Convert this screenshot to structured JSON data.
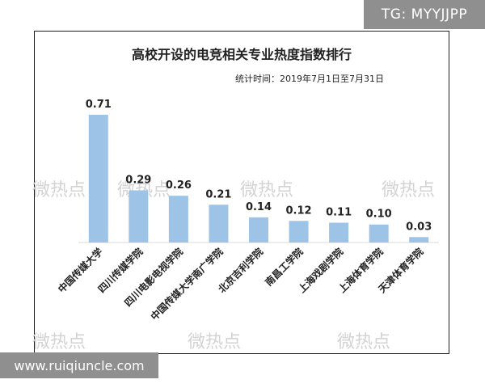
{
  "watermarks": {
    "top": "TG: MYYJJPP",
    "bottom": "www.ruiqiuncle.com",
    "weibo": "微热点"
  },
  "chart_data": {
    "type": "bar",
    "title": "高校开设的电竞相关专业热度指数排行",
    "subtitle": "统计时间：2019年7月1日至7月31日",
    "categories": [
      "中国传媒大学",
      "四川传媒学院",
      "四川电影电视学院",
      "中国传媒大学南广学院",
      "北京吉利学院",
      "南昌工学院",
      "上海戏剧学院",
      "上海体育学院",
      "天津体育学院"
    ],
    "values": [
      0.71,
      0.29,
      0.26,
      0.21,
      0.14,
      0.12,
      0.11,
      0.1,
      0.03
    ],
    "value_labels": [
      "0.71",
      "0.29",
      "0.26",
      "0.21",
      "0.14",
      "0.12",
      "0.11",
      "0.10",
      "0.03"
    ],
    "ylim": [
      0,
      0.71
    ],
    "grid": false,
    "legend": "none",
    "bar_color": "#9dc3e6",
    "axis_color": "#d9d9d9"
  }
}
